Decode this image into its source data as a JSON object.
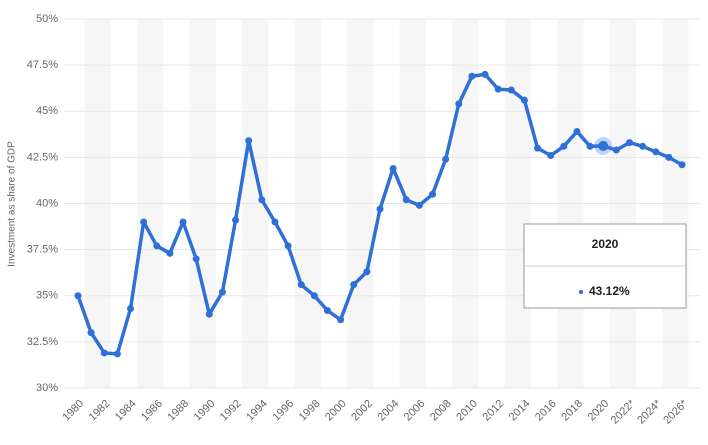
{
  "chart_data": {
    "type": "line",
    "y_label": "Investment as share of GDP",
    "categories": [
      "1980",
      null,
      "1982",
      null,
      "1984",
      null,
      "1986",
      null,
      "1988",
      null,
      "1990",
      null,
      "1992",
      null,
      "1994",
      null,
      "1996",
      null,
      "1998",
      null,
      "2000",
      null,
      "2002",
      null,
      "2004",
      null,
      "2006",
      null,
      "2008",
      null,
      "2010",
      null,
      "2012",
      null,
      "2014",
      null,
      "2016",
      null,
      "2018",
      null,
      "2020",
      null,
      "2022*",
      null,
      "2024*",
      null,
      "2026*"
    ],
    "series": [
      {
        "color": "#2f6fd8",
        "values": [
          35.0,
          33.0,
          31.9,
          31.85,
          34.3,
          39.0,
          37.7,
          37.3,
          39.0,
          37.0,
          34.0,
          35.2,
          39.1,
          43.4,
          40.2,
          39.0,
          37.7,
          35.6,
          35.0,
          34.2,
          33.7,
          35.6,
          36.3,
          39.7,
          41.9,
          40.2,
          39.9,
          40.5,
          42.4,
          45.4,
          46.9,
          47.0,
          46.2,
          46.15,
          45.6,
          43.0,
          42.6,
          43.1,
          43.9,
          43.1,
          43.12,
          42.9,
          43.3,
          43.1,
          42.8,
          42.5,
          42.1
        ]
      }
    ],
    "value_labels": [
      null,
      null,
      null,
      null,
      null,
      null,
      null,
      null,
      null,
      null,
      null,
      null,
      null,
      null,
      null,
      null,
      null,
      null,
      null,
      null,
      null,
      null,
      null,
      null,
      null,
      null,
      null,
      null,
      null,
      null,
      null,
      null,
      null,
      null,
      null,
      null,
      null,
      null,
      null,
      null,
      "43.12%",
      null,
      null,
      null,
      null,
      null,
      null
    ],
    "highlight": 40,
    "ylim": [
      30,
      50
    ],
    "yticks": [
      {
        "value": 30,
        "label": "30%"
      },
      {
        "value": 32.5,
        "label": "32.5%"
      },
      {
        "value": 35,
        "label": "35%"
      },
      {
        "value": 37.5,
        "label": "37.5%"
      },
      {
        "value": 40,
        "label": "40%"
      },
      {
        "value": 42.5,
        "label": "42.5%"
      },
      {
        "value": 45,
        "label": "45%"
      },
      {
        "value": 47.5,
        "label": "47.5%"
      },
      {
        "value": 50,
        "label": "50%"
      }
    ],
    "grid": true
  }
}
